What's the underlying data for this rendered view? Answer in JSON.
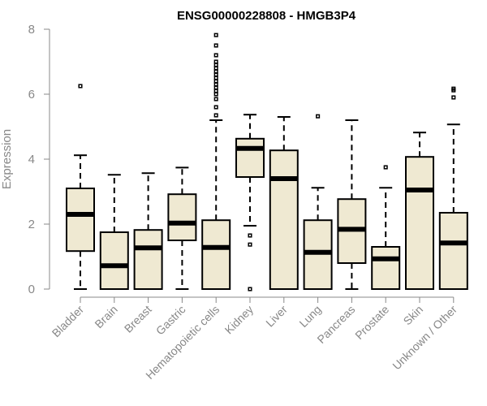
{
  "chart_data": {
    "type": "boxplot",
    "title": "ENSG00000228808 - HMGB3P4",
    "xlabel": "",
    "ylabel": "Expression",
    "ylim": [
      0,
      8
    ],
    "yticks": [
      0,
      2,
      4,
      6,
      8
    ],
    "grid": false,
    "box_color": "#efe9d2",
    "categories": [
      "Bladder",
      "Brain",
      "Breast",
      "Gastric",
      "Hematopoietic cells",
      "Kidney",
      "Liver",
      "Lung",
      "Pancreas",
      "Prostate",
      "Skin",
      "Unknown / Other"
    ],
    "boxes": [
      {
        "min": 0,
        "q1": 1.17,
        "median": 2.3,
        "q3": 3.1,
        "max": 4.12,
        "outliers": [
          6.25
        ]
      },
      {
        "min": 0,
        "q1": 0,
        "median": 0.72,
        "q3": 1.75,
        "max": 3.52,
        "outliers": []
      },
      {
        "min": 0,
        "q1": 0,
        "median": 1.27,
        "q3": 1.82,
        "max": 3.57,
        "outliers": []
      },
      {
        "min": 0,
        "q1": 1.5,
        "median": 2.03,
        "q3": 2.92,
        "max": 3.74,
        "outliers": []
      },
      {
        "min": 0,
        "q1": 0,
        "median": 1.28,
        "q3": 2.12,
        "max": 5.2,
        "outliers": [
          5.35,
          5.6,
          5.85,
          6.0,
          6.1,
          6.2,
          6.3,
          6.4,
          6.5,
          6.6,
          6.7,
          6.8,
          6.9,
          7.0,
          7.2,
          7.5,
          7.82
        ]
      },
      {
        "min": 1.95,
        "q1": 3.45,
        "median": 4.33,
        "q3": 4.63,
        "max": 5.37,
        "outliers": [
          1.65,
          1.37,
          0
        ]
      },
      {
        "min": 0,
        "q1": 0,
        "median": 3.4,
        "q3": 4.27,
        "max": 5.3,
        "outliers": []
      },
      {
        "min": 0,
        "q1": 0,
        "median": 1.13,
        "q3": 2.12,
        "max": 3.12,
        "outliers": [
          5.32
        ]
      },
      {
        "min": 0,
        "q1": 0.8,
        "median": 1.84,
        "q3": 2.77,
        "max": 5.2,
        "outliers": []
      },
      {
        "min": 0,
        "q1": 0,
        "median": 0.93,
        "q3": 1.3,
        "max": 3.12,
        "outliers": [
          3.75
        ]
      },
      {
        "min": 0,
        "q1": 0,
        "median": 3.05,
        "q3": 4.07,
        "max": 4.82,
        "outliers": []
      },
      {
        "min": 0,
        "q1": 0,
        "median": 1.42,
        "q3": 2.35,
        "max": 5.07,
        "outliers": [
          5.9,
          6.12,
          6.17
        ]
      }
    ]
  }
}
